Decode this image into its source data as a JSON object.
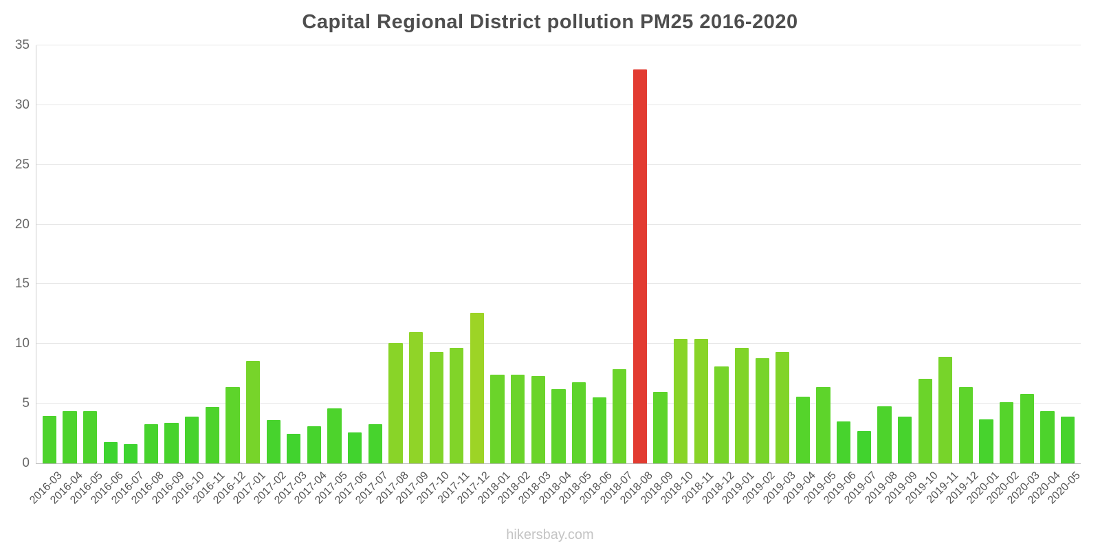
{
  "title": "Capital Regional District pollution PM25 2016-2020",
  "watermark": "hikersbay.com",
  "chart_data": {
    "type": "bar",
    "title": "Capital Regional District pollution PM25 2016-2020",
    "xlabel": "",
    "ylabel": "",
    "ylim": [
      0,
      35
    ],
    "yticks": [
      0,
      5,
      10,
      15,
      20,
      25,
      30,
      35
    ],
    "grid": true,
    "legend": false,
    "highlight_category": "2018-08",
    "highlight_color": "#e23b31",
    "categories": [
      "2016-03",
      "2016-04",
      "2016-05",
      "2016-06",
      "2016-07",
      "2016-08",
      "2016-09",
      "2016-10",
      "2016-11",
      "2016-12",
      "2017-01",
      "2017-02",
      "2017-03",
      "2017-04",
      "2017-05",
      "2017-06",
      "2017-07",
      "2017-08",
      "2017-09",
      "2017-10",
      "2017-11",
      "2017-12",
      "2018-01",
      "2018-02",
      "2018-03",
      "2018-04",
      "2018-05",
      "2018-06",
      "2018-07",
      "2018-08",
      "2018-09",
      "2018-10",
      "2018-11",
      "2018-12",
      "2019-01",
      "2019-02",
      "2019-03",
      "2019-04",
      "2019-05",
      "2019-06",
      "2019-07",
      "2019-08",
      "2019-09",
      "2019-10",
      "2019-11",
      "2019-12",
      "2020-01",
      "2020-02",
      "2020-03",
      "2020-04",
      "2020-05"
    ],
    "values": [
      4.0,
      4.4,
      4.4,
      1.8,
      1.6,
      3.3,
      3.4,
      3.9,
      4.7,
      6.4,
      8.6,
      3.6,
      2.5,
      3.1,
      4.6,
      2.6,
      3.3,
      10.1,
      11.0,
      9.3,
      9.7,
      12.6,
      7.4,
      7.4,
      7.3,
      6.2,
      6.8,
      5.5,
      7.9,
      33.0,
      6.0,
      10.4,
      10.4,
      8.1,
      9.7,
      8.8,
      9.3,
      5.6,
      6.4,
      3.5,
      2.7,
      4.8,
      3.9,
      7.1,
      8.9,
      6.4,
      3.7,
      5.1,
      5.8,
      4.4,
      3.9
    ],
    "colors": [
      "#4dd32c",
      "#4dd32c",
      "#4dd32c",
      "#3dd42f",
      "#3dd42f",
      "#47d32d",
      "#47d32d",
      "#47d32d",
      "#4dd32c",
      "#5ed42b",
      "#77d42a",
      "#47d32d",
      "#41d32e",
      "#47d32d",
      "#4dd32c",
      "#41d32e",
      "#47d32d",
      "#89d428",
      "#90d428",
      "#81d429",
      "#81d429",
      "#9dd426",
      "#6bd42a",
      "#6bd42a",
      "#6bd42a",
      "#5ed42b",
      "#5ed42b",
      "#55d42b",
      "#6bd42a",
      "#e23b31",
      "#5ed42b",
      "#89d428",
      "#89d428",
      "#77d42a",
      "#81d429",
      "#77d42a",
      "#81d429",
      "#55d42b",
      "#5ed42b",
      "#47d32d",
      "#41d32e",
      "#4dd32c",
      "#47d32d",
      "#6bd42a",
      "#77d42a",
      "#5ed42b",
      "#47d32d",
      "#55d42b",
      "#55d42b",
      "#4dd32c",
      "#47d32d"
    ]
  }
}
